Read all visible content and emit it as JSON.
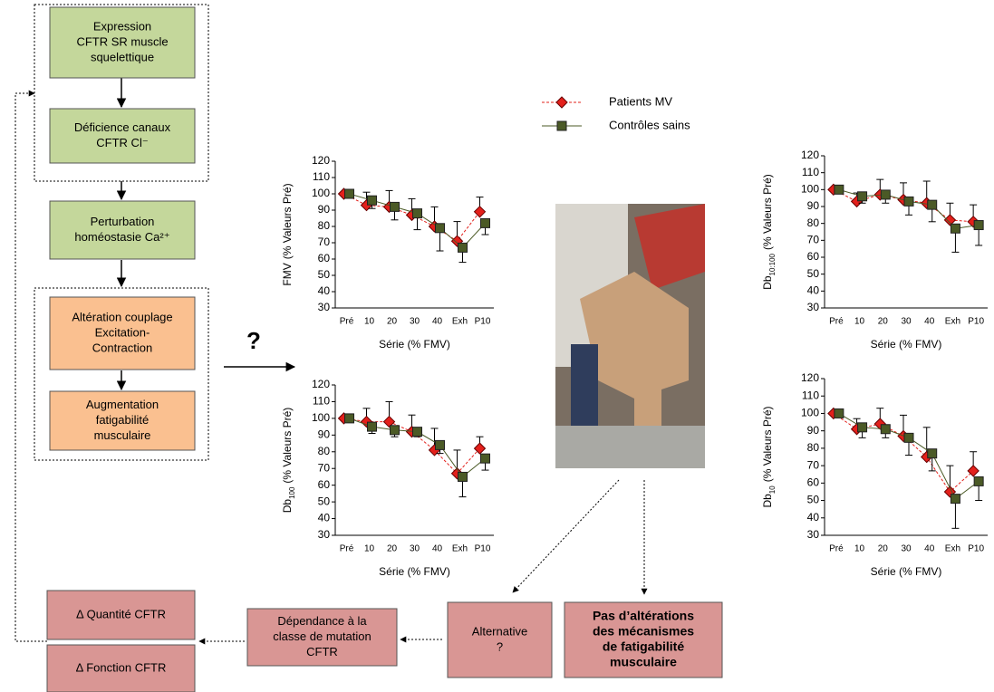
{
  "nodes": [
    {
      "lines": [
        "Expression",
        "CFTR  SR muscle",
        "squelettique"
      ]
    },
    {
      "lines": [
        "Déficience canaux",
        "CFTR Cl⁻"
      ]
    },
    {
      "lines": [
        "Perturbation",
        "homéostasie Ca²⁺"
      ]
    },
    {
      "lines": [
        "Altération couplage",
        "Excitation-",
        "Contraction"
      ]
    },
    {
      "lines": [
        "Augmentation",
        "fatigabilité",
        "musculaire"
      ]
    },
    {
      "lines": [
        "Δ Quantité CFTR"
      ]
    },
    {
      "lines": [
        "Δ Fonction CFTR"
      ]
    },
    {
      "lines": [
        "Dépendance à la",
        "classe de mutation",
        "CFTR"
      ]
    },
    {
      "lines": [
        "Alternative",
        "?"
      ]
    },
    {
      "lines": [
        "Pas d’altérations",
        "des mécanismes",
        "de fatigabilité",
        "musculaire"
      ]
    }
  ],
  "question": "?",
  "chart_data": [
    {
      "type": "line",
      "ylabel": "FMV",
      "ylabel_rest": "(% Valeurs Pré)",
      "xlabel": "Série (% FMV)",
      "categories": [
        "Pré",
        "10",
        "20",
        "30",
        "40",
        "Exh",
        "P10"
      ],
      "ylim": [
        30,
        120
      ],
      "yticks": [
        30,
        40,
        50,
        60,
        70,
        80,
        90,
        100,
        110,
        120
      ],
      "series": [
        {
          "name": "Patients MV",
          "color": "#e3201b",
          "marker": "diamond",
          "dash": true,
          "error_direction": "up",
          "values": [
            100,
            93,
            92,
            87,
            80,
            71,
            89
          ],
          "errors": [
            0,
            8,
            10,
            10,
            12,
            12,
            9
          ]
        },
        {
          "name": "Contrôles sains",
          "color": "#4b5a26",
          "marker": "square",
          "dash": false,
          "error_direction": "down",
          "values": [
            100,
            96,
            92,
            88,
            79,
            67,
            82
          ],
          "errors": [
            0,
            5,
            8,
            10,
            14,
            9,
            7
          ]
        }
      ]
    },
    {
      "type": "line",
      "ylabel": "Db",
      "ylabel_sub": "100",
      "ylabel_rest": "(% Valeurs Pré)",
      "xlabel": "Série (% FMV)",
      "categories": [
        "Pré",
        "10",
        "20",
        "30",
        "40",
        "Exh",
        "P10"
      ],
      "ylim": [
        30,
        120
      ],
      "yticks": [
        30,
        40,
        50,
        60,
        70,
        80,
        90,
        100,
        110,
        120
      ],
      "series": [
        {
          "name": "Patients MV",
          "color": "#e3201b",
          "marker": "diamond",
          "dash": true,
          "error_direction": "up",
          "values": [
            100,
            98,
            98,
            92,
            81,
            67,
            82
          ],
          "errors": [
            0,
            8,
            12,
            10,
            13,
            14,
            7
          ]
        },
        {
          "name": "Contrôles sains",
          "color": "#4b5a26",
          "marker": "square",
          "dash": false,
          "error_direction": "down",
          "values": [
            100,
            95,
            93,
            92,
            84,
            65,
            76
          ],
          "errors": [
            0,
            4,
            4,
            3,
            5,
            12,
            7
          ]
        }
      ]
    },
    {
      "type": "line",
      "ylabel": "Db",
      "ylabel_sub": "10:100",
      "ylabel_rest": "(% Valeurs Pré)",
      "xlabel": "Série (% FMV)",
      "categories": [
        "Pré",
        "10",
        "20",
        "30",
        "40",
        "Exh",
        "P10"
      ],
      "ylim": [
        30,
        120
      ],
      "yticks": [
        30,
        40,
        50,
        60,
        70,
        80,
        90,
        100,
        110,
        120
      ],
      "series": [
        {
          "name": "Patients MV",
          "color": "#e3201b",
          "marker": "diamond",
          "dash": true,
          "error_direction": "up",
          "values": [
            100,
            93,
            97,
            94,
            92,
            82,
            81
          ],
          "errors": [
            0,
            5,
            9,
            10,
            13,
            10,
            10
          ]
        },
        {
          "name": "Contrôles sains",
          "color": "#4b5a26",
          "marker": "square",
          "dash": false,
          "error_direction": "down",
          "values": [
            100,
            96,
            97,
            93,
            91,
            77,
            79
          ],
          "errors": [
            0,
            4,
            5,
            8,
            10,
            14,
            12
          ]
        }
      ]
    },
    {
      "type": "line",
      "ylabel": "Db",
      "ylabel_sub": "10",
      "ylabel_rest": "(% Valeurs Pré)",
      "xlabel": "Série (% FMV)",
      "categories": [
        "Pré",
        "10",
        "20",
        "30",
        "40",
        "Exh",
        "P10"
      ],
      "ylim": [
        30,
        120
      ],
      "yticks": [
        30,
        40,
        50,
        60,
        70,
        80,
        90,
        100,
        110,
        120
      ],
      "series": [
        {
          "name": "Patients MV",
          "color": "#e3201b",
          "marker": "diamond",
          "dash": true,
          "error_direction": "up",
          "values": [
            100,
            91,
            94,
            87,
            75,
            55,
            67
          ],
          "errors": [
            0,
            6,
            9,
            12,
            17,
            15,
            11
          ]
        },
        {
          "name": "Contrôles sains",
          "color": "#4b5a26",
          "marker": "square",
          "dash": false,
          "error_direction": "down",
          "values": [
            100,
            92,
            91,
            86,
            77,
            51,
            61
          ],
          "errors": [
            0,
            6,
            5,
            10,
            10,
            17,
            11
          ]
        }
      ]
    }
  ]
}
